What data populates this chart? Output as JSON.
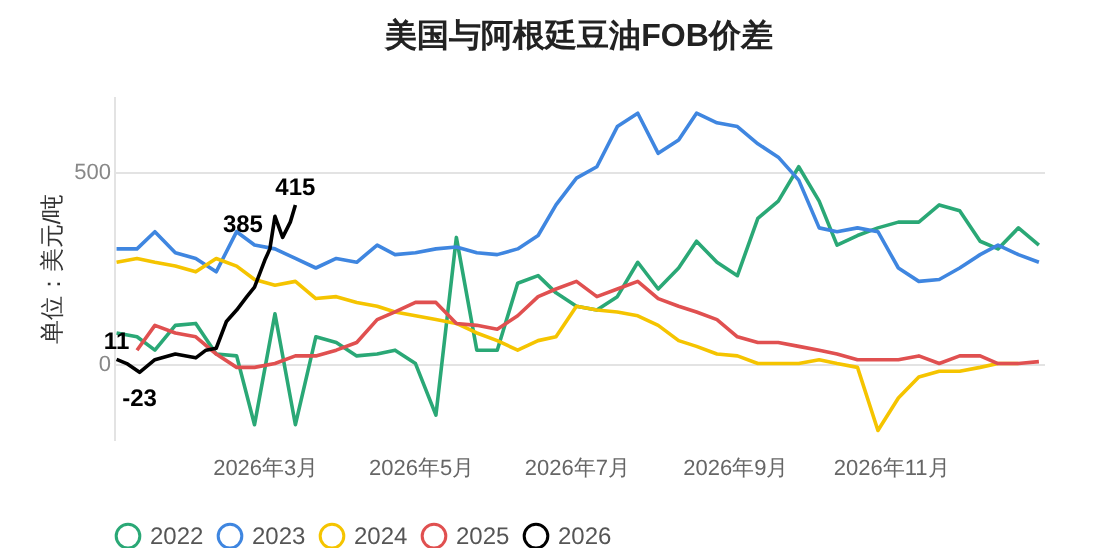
{
  "chart_data": {
    "type": "line",
    "title": "美国与阿根廷豆油FOB价差",
    "ylabel": "单位：美元/吨",
    "x": [
      "2026-01-02",
      "2026-01-10",
      "2026-01-17",
      "2026-01-25",
      "2026-02-02",
      "2026-02-10",
      "2026-02-18",
      "2026-02-25",
      "2026-03-05",
      "2026-03-13",
      "2026-03-21",
      "2026-03-29",
      "2026-04-06",
      "2026-04-14",
      "2026-04-21",
      "2026-04-29",
      "2026-05-07",
      "2026-05-15",
      "2026-05-23",
      "2026-05-31",
      "2026-06-08",
      "2026-06-16",
      "2026-06-23",
      "2026-07-01",
      "2026-07-09",
      "2026-07-17",
      "2026-07-25",
      "2026-08-02",
      "2026-08-10",
      "2026-08-17",
      "2026-08-25",
      "2026-09-02",
      "2026-09-10",
      "2026-09-18",
      "2026-09-26",
      "2026-10-04",
      "2026-10-11",
      "2026-10-19",
      "2026-10-27",
      "2026-11-04",
      "2026-11-12",
      "2026-11-20",
      "2026-11-28",
      "2026-12-06",
      "2026-12-13",
      "2026-12-21",
      "2026-12-29"
    ],
    "series": [
      {
        "name": "2022",
        "color": "#2aa876",
        "values": [
          80,
          70,
          35,
          100,
          105,
          25,
          20,
          -160,
          130,
          -160,
          70,
          55,
          20,
          25,
          35,
          0,
          -135,
          330,
          35,
          35,
          210,
          230,
          185,
          150,
          140,
          175,
          265,
          195,
          250,
          320,
          265,
          230,
          380,
          425,
          515,
          425,
          310,
          335,
          355,
          370,
          370,
          415,
          400,
          320,
          300,
          355,
          310
        ]
      },
      {
        "name": "2023",
        "color": "#3f86e0",
        "values": [
          300,
          300,
          345,
          290,
          275,
          240,
          345,
          310,
          300,
          275,
          250,
          275,
          265,
          310,
          285,
          290,
          300,
          305,
          290,
          285,
          300,
          335,
          415,
          485,
          515,
          620,
          655,
          550,
          585,
          655,
          630,
          620,
          575,
          540,
          480,
          355,
          345,
          355,
          345,
          250,
          215,
          220,
          250,
          285,
          310,
          285,
          265
        ]
      },
      {
        "name": "2024",
        "color": "#f5c400",
        "values": [
          265,
          275,
          265,
          255,
          240,
          275,
          255,
          220,
          205,
          215,
          170,
          175,
          160,
          150,
          135,
          125,
          115,
          105,
          80,
          60,
          35,
          60,
          70,
          150,
          140,
          135,
          125,
          100,
          60,
          45,
          25,
          20,
          0,
          0,
          0,
          10,
          0,
          -10,
          -175,
          -90,
          -35,
          -20,
          -20,
          -10,
          0,
          0,
          null
        ]
      },
      {
        "name": "2025",
        "color": "#e05050",
        "values": [
          null,
          35,
          100,
          80,
          70,
          25,
          -10,
          -10,
          0,
          20,
          20,
          35,
          55,
          115,
          135,
          160,
          160,
          105,
          100,
          90,
          125,
          175,
          195,
          215,
          175,
          195,
          215,
          170,
          150,
          135,
          115,
          70,
          55,
          55,
          45,
          35,
          25,
          10,
          10,
          10,
          20,
          0,
          20,
          20,
          0,
          0,
          5
        ]
      },
      {
        "name": "2026",
        "color": "#000000",
        "x": [
          "2026-01-02",
          "2026-01-06",
          "2026-01-11",
          "2026-01-17",
          "2026-01-25",
          "2026-02-02",
          "2026-02-06",
          "2026-02-10",
          "2026-02-14",
          "2026-02-18",
          "2026-02-22",
          "2026-02-25",
          "2026-03-01",
          "2026-03-03",
          "2026-03-05",
          "2026-03-08",
          "2026-03-11",
          "2026-03-13"
        ],
        "values": [
          11,
          0,
          -23,
          10,
          25,
          15,
          35,
          40,
          110,
          140,
          175,
          200,
          270,
          300,
          385,
          330,
          370,
          415
        ],
        "value_labels": [
          "11",
          null,
          "-23",
          null,
          null,
          null,
          null,
          null,
          null,
          null,
          null,
          null,
          null,
          null,
          "385",
          null,
          null,
          "415"
        ]
      }
    ],
    "xlim": [
      "2026-01-01",
      "2026-12-31"
    ],
    "xticks": [
      {
        "value": "2026-03-01",
        "label": "2026年3月"
      },
      {
        "value": "2026-05-01",
        "label": "2026年5月"
      },
      {
        "value": "2026-07-01",
        "label": "2026年7月"
      },
      {
        "value": "2026-09-01",
        "label": "2026年9月"
      },
      {
        "value": "2026-11-01",
        "label": "2026年11月"
      }
    ],
    "ylim": [
      -200,
      700
    ],
    "yticks": [
      0,
      500
    ],
    "grid": "y",
    "legend": "bottom"
  }
}
